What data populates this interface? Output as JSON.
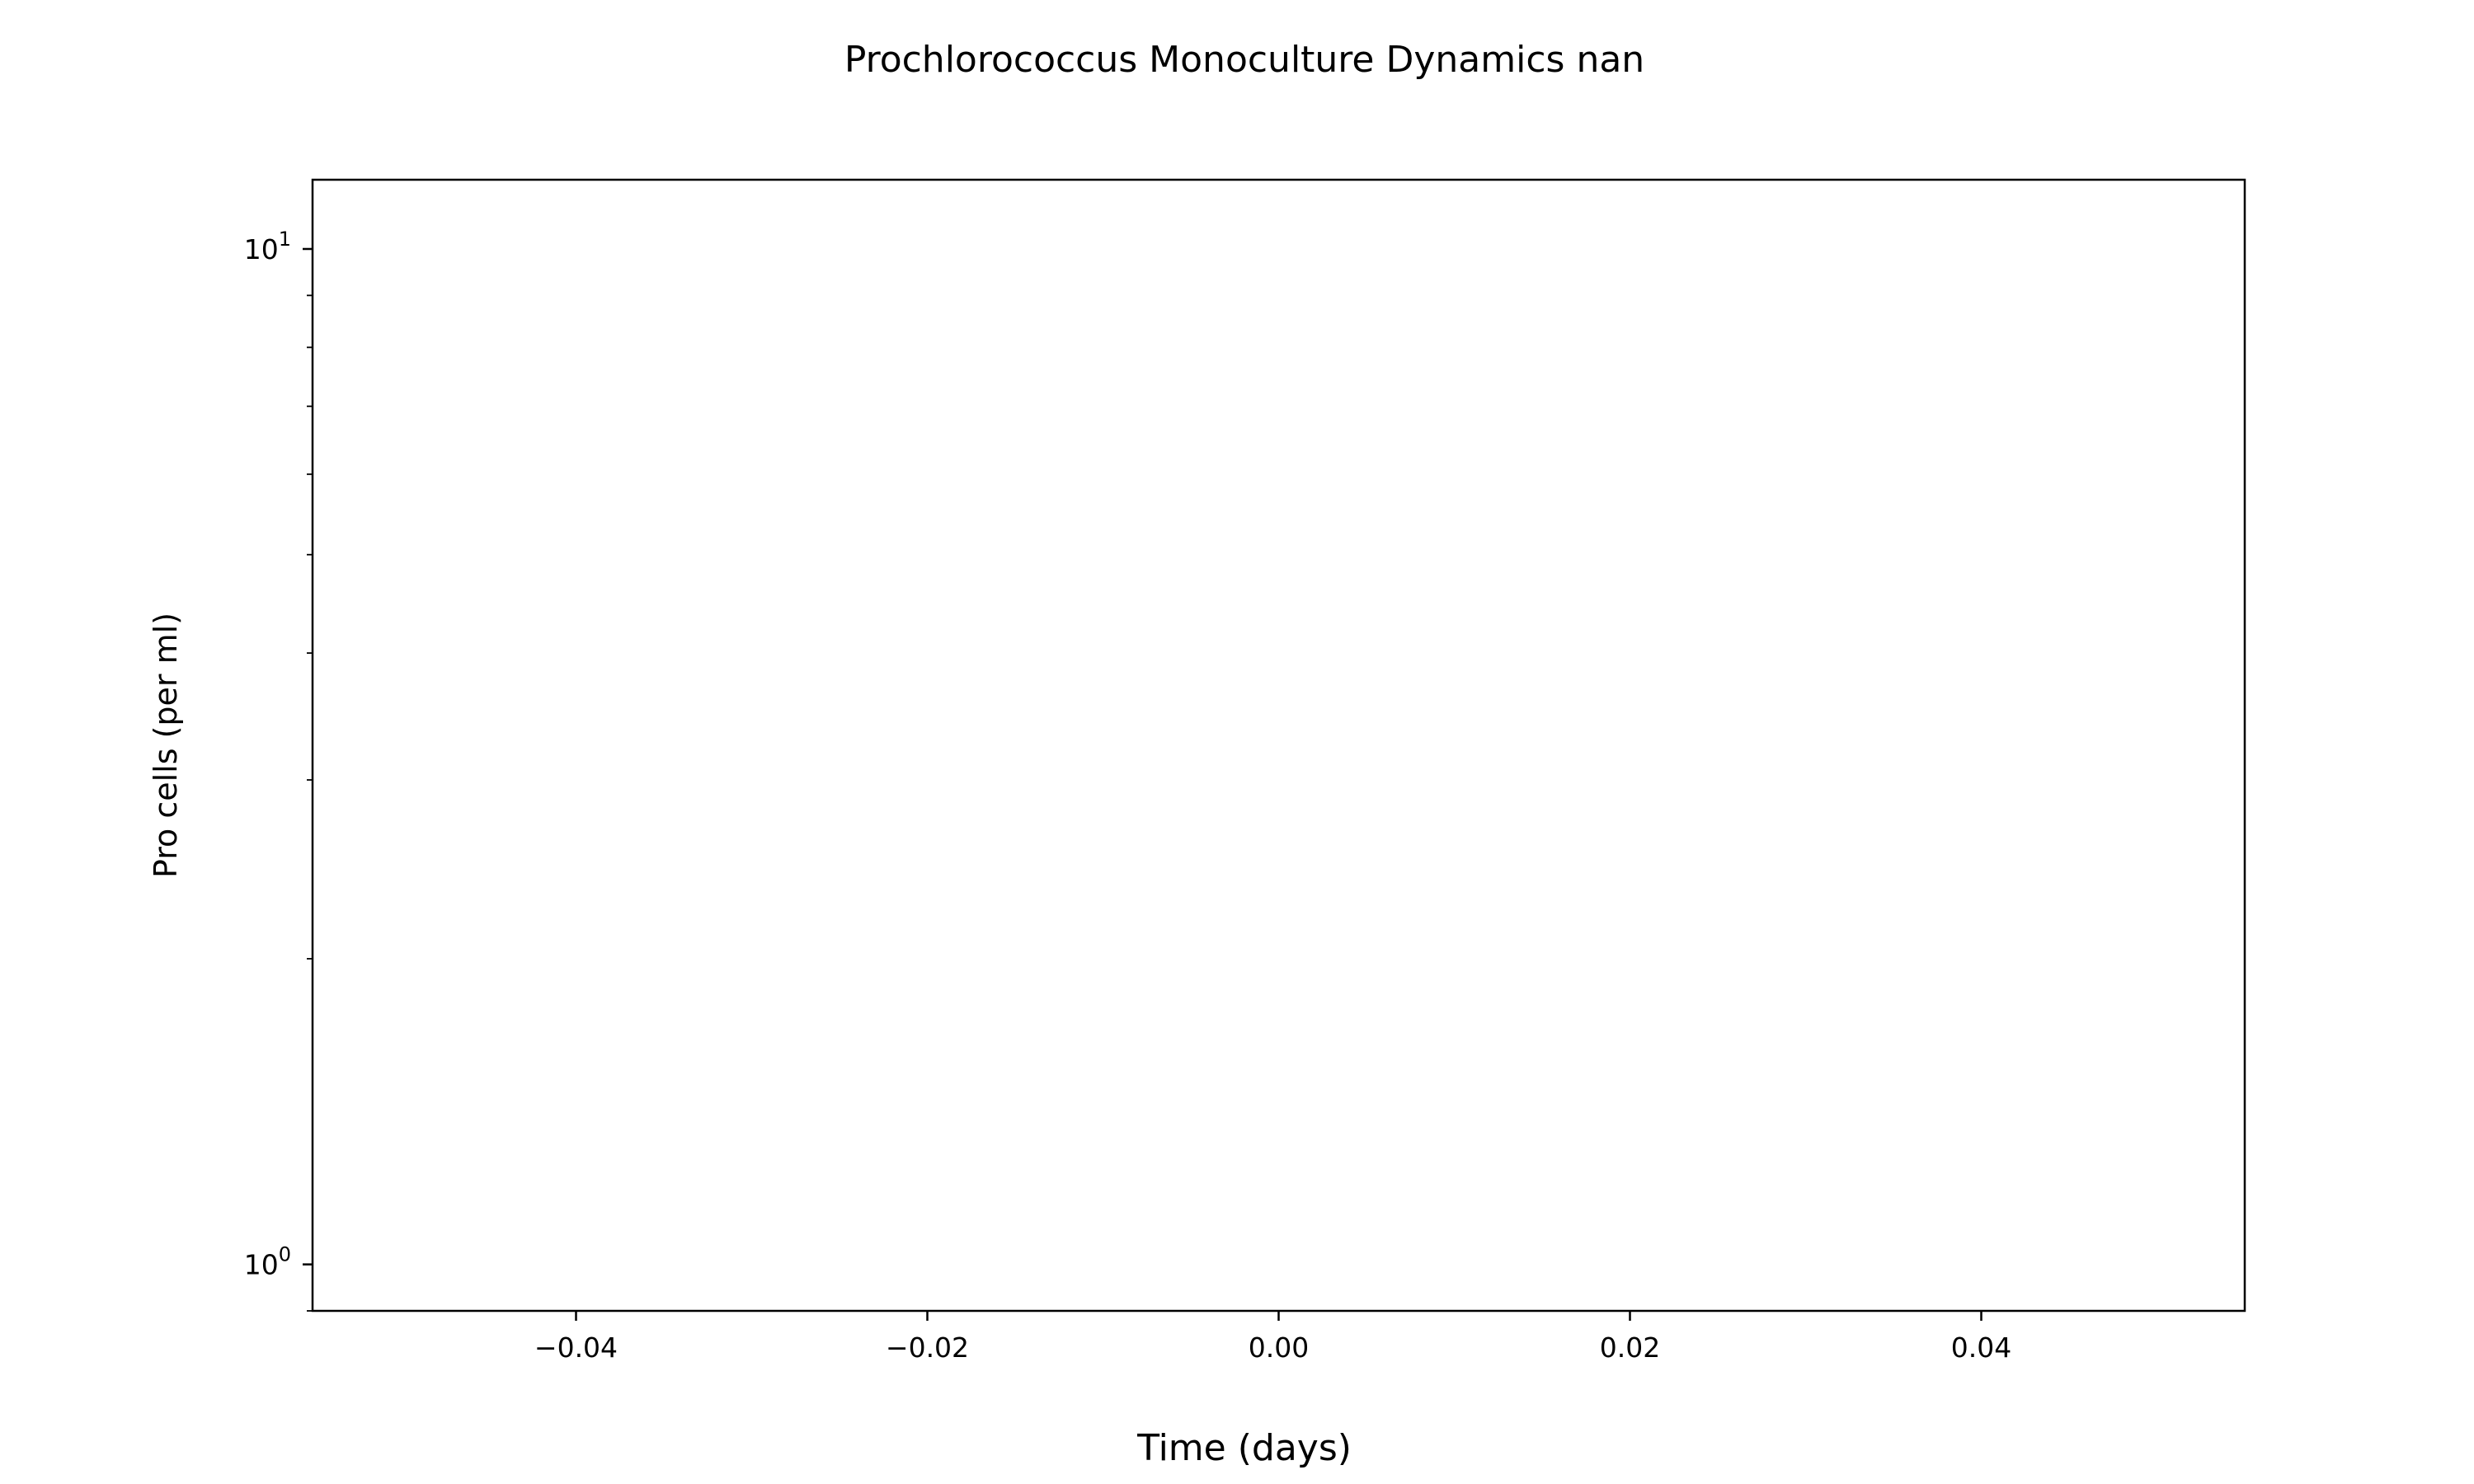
{
  "chart_data": {
    "type": "line",
    "title": "Prochlorococcus Monoculture Dynamics nan",
    "xlabel": "Time (days)",
    "ylabel": "Pro cells (per ml)",
    "xlim": [
      -0.055,
      0.055
    ],
    "ylim": [
      0.9,
      11.7
    ],
    "yscale": "log",
    "x_ticks": [
      -0.04,
      -0.02,
      0.0,
      0.02,
      0.04
    ],
    "x_tick_labels": [
      "−0.04",
      "−0.02",
      "0.00",
      "0.02",
      "0.04"
    ],
    "y_major_ticks": [
      {
        "value": 1,
        "base": "10",
        "exp": "0"
      },
      {
        "value": 10,
        "base": "10",
        "exp": "1"
      }
    ],
    "y_minor_ticks": [
      0.9,
      2,
      3,
      4,
      5,
      6,
      7,
      8,
      9
    ],
    "grid": false,
    "legend": "none",
    "series": []
  }
}
